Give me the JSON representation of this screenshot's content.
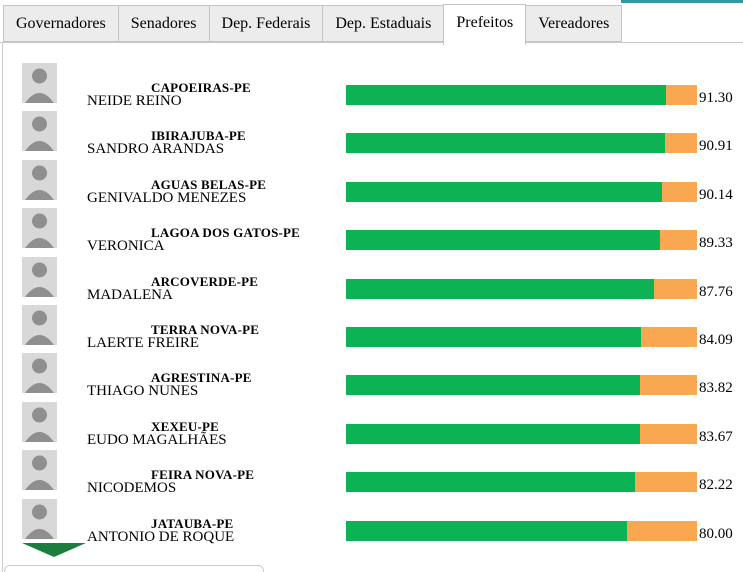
{
  "tabs": [
    {
      "label": "Governadores",
      "active": false
    },
    {
      "label": "Senadores",
      "active": false
    },
    {
      "label": "Dep. Federais",
      "active": false
    },
    {
      "label": "Dep. Estaduais",
      "active": false
    },
    {
      "label": "Prefeitos",
      "active": true
    },
    {
      "label": "Vereadores",
      "active": false
    }
  ],
  "rows": [
    {
      "city": "CAPOEIRAS-PE",
      "name": "NEIDE REINO",
      "value": "91.30"
    },
    {
      "city": "IBIRAJUBA-PE",
      "name": "SANDRO ARANDAS",
      "value": "90.91"
    },
    {
      "city": "AGUAS BELAS-PE",
      "name": "GENIVALDO MENEZES",
      "value": "90.14"
    },
    {
      "city": "LAGOA DOS GATOS-PE",
      "name": "VERONICA",
      "value": "89.33"
    },
    {
      "city": "ARCOVERDE-PE",
      "name": "MADALENA",
      "value": "87.76"
    },
    {
      "city": "TERRA NOVA-PE",
      "name": "LAERTE FREIRE",
      "value": "84.09"
    },
    {
      "city": "AGRESTINA-PE",
      "name": "THIAGO NUNES",
      "value": "83.82"
    },
    {
      "city": "XEXEU-PE",
      "name": "EUDO MAGALHÃES",
      "value": "83.67"
    },
    {
      "city": "FEIRA NOVA-PE",
      "name": "NICODEMOS",
      "value": "82.22"
    },
    {
      "city": "JATAUBA-PE",
      "name": "ANTONIO DE ROQUE",
      "value": "80.00"
    }
  ],
  "chart_data": {
    "type": "bar",
    "categories": [
      "NEIDE REINO (CAPOEIRAS-PE)",
      "SANDRO ARANDAS (IBIRAJUBA-PE)",
      "GENIVALDO MENEZES (AGUAS BELAS-PE)",
      "VERONICA (LAGOA DOS GATOS-PE)",
      "MADALENA (ARCOVERDE-PE)",
      "LAERTE FREIRE (TERRA NOVA-PE)",
      "THIAGO NUNES (AGRESTINA-PE)",
      "EUDO MAGALHÃES (XEXEU-PE)",
      "NICODEMOS (FEIRA NOVA-PE)",
      "ANTONIO DE ROQUE (JATAUBA-PE)"
    ],
    "values": [
      91.3,
      90.91,
      90.14,
      89.33,
      87.76,
      84.09,
      83.82,
      83.67,
      82.22,
      80.0
    ],
    "title": "",
    "xlabel": "",
    "ylabel": "",
    "xlim": [
      0,
      100
    ],
    "orientation": "horizontal",
    "legend": false
  },
  "colors": {
    "bar_fill": "#0cb355",
    "bar_remainder": "#f9a851",
    "scroll_arrow": "#1b7e3e",
    "panel_top_accent": "#2e9c9c",
    "tab_background": "#ececec",
    "border": "#c9c9c9"
  }
}
